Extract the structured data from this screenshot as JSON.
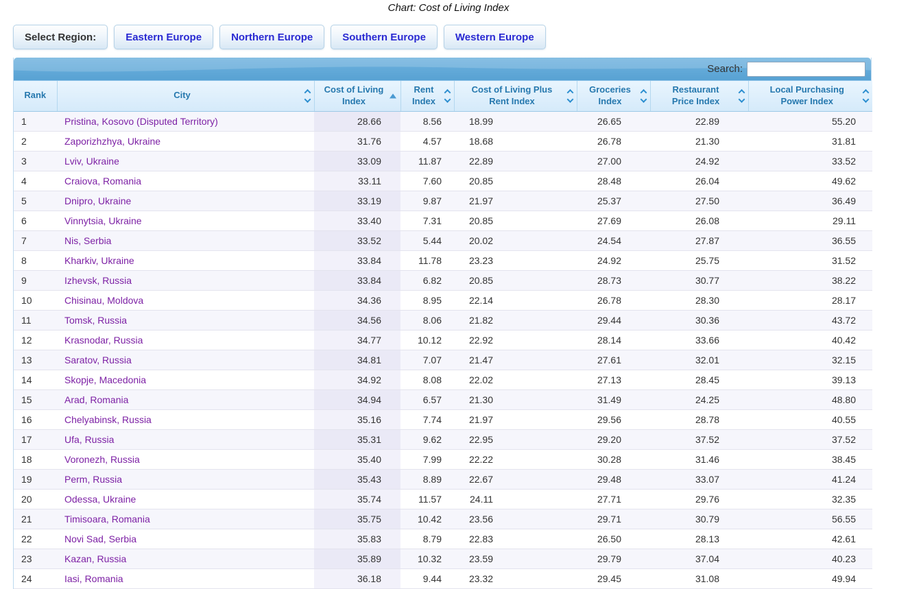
{
  "page": {
    "title": "Chart: Cost of Living Index"
  },
  "region_bar": {
    "label": "Select Region:",
    "regions": [
      "Eastern Europe",
      "Northern Europe",
      "Southern Europe",
      "Western Europe"
    ]
  },
  "search": {
    "label": "Search:",
    "value": "",
    "placeholder": ""
  },
  "table": {
    "sorted_column": "Cost of Living Index",
    "sort_direction": "ascending",
    "columns": [
      {
        "label": "Rank",
        "sort": "none"
      },
      {
        "label": "City",
        "sort": "both"
      },
      {
        "label": "Cost of Living\nIndex",
        "sort": "asc"
      },
      {
        "label": "Rent\nIndex",
        "sort": "both"
      },
      {
        "label": "Cost of Living Plus\nRent Index",
        "sort": "both"
      },
      {
        "label": "Groceries\nIndex",
        "sort": "both"
      },
      {
        "label": "Restaurant\nPrice Index",
        "sort": "both"
      },
      {
        "label": "Local Purchasing\nPower Index",
        "sort": "both"
      }
    ],
    "rows": [
      [
        "1",
        "Pristina, Kosovo (Disputed Territory)",
        "28.66",
        "8.56",
        "18.99",
        "26.65",
        "22.89",
        "55.20"
      ],
      [
        "2",
        "Zaporizhzhya, Ukraine",
        "31.76",
        "4.57",
        "18.68",
        "26.78",
        "21.30",
        "31.81"
      ],
      [
        "3",
        "Lviv, Ukraine",
        "33.09",
        "11.87",
        "22.89",
        "27.00",
        "24.92",
        "33.52"
      ],
      [
        "4",
        "Craiova, Romania",
        "33.11",
        "7.60",
        "20.85",
        "28.48",
        "26.04",
        "49.62"
      ],
      [
        "5",
        "Dnipro, Ukraine",
        "33.19",
        "9.87",
        "21.97",
        "25.37",
        "27.50",
        "36.49"
      ],
      [
        "6",
        "Vinnytsia, Ukraine",
        "33.40",
        "7.31",
        "20.85",
        "27.69",
        "26.08",
        "29.11"
      ],
      [
        "7",
        "Nis, Serbia",
        "33.52",
        "5.44",
        "20.02",
        "24.54",
        "27.87",
        "36.55"
      ],
      [
        "8",
        "Kharkiv, Ukraine",
        "33.84",
        "11.78",
        "23.23",
        "24.92",
        "25.75",
        "31.52"
      ],
      [
        "9",
        "Izhevsk, Russia",
        "33.84",
        "6.82",
        "20.85",
        "28.73",
        "30.77",
        "38.22"
      ],
      [
        "10",
        "Chisinau, Moldova",
        "34.36",
        "8.95",
        "22.14",
        "26.78",
        "28.30",
        "28.17"
      ],
      [
        "11",
        "Tomsk, Russia",
        "34.56",
        "8.06",
        "21.82",
        "29.44",
        "30.36",
        "43.72"
      ],
      [
        "12",
        "Krasnodar, Russia",
        "34.77",
        "10.12",
        "22.92",
        "28.14",
        "33.66",
        "40.42"
      ],
      [
        "13",
        "Saratov, Russia",
        "34.81",
        "7.07",
        "21.47",
        "27.61",
        "32.01",
        "32.15"
      ],
      [
        "14",
        "Skopje, Macedonia",
        "34.92",
        "8.08",
        "22.02",
        "27.13",
        "28.45",
        "39.13"
      ],
      [
        "15",
        "Arad, Romania",
        "34.94",
        "6.57",
        "21.30",
        "31.49",
        "24.25",
        "48.80"
      ],
      [
        "16",
        "Chelyabinsk, Russia",
        "35.16",
        "7.74",
        "21.97",
        "29.56",
        "28.78",
        "40.55"
      ],
      [
        "17",
        "Ufa, Russia",
        "35.31",
        "9.62",
        "22.95",
        "29.20",
        "37.52",
        "37.52"
      ],
      [
        "18",
        "Voronezh, Russia",
        "35.40",
        "7.99",
        "22.22",
        "30.28",
        "31.46",
        "38.45"
      ],
      [
        "19",
        "Perm, Russia",
        "35.43",
        "8.89",
        "22.67",
        "29.48",
        "33.07",
        "41.24"
      ],
      [
        "20",
        "Odessa, Ukraine",
        "35.74",
        "11.57",
        "24.11",
        "27.71",
        "29.76",
        "32.35"
      ],
      [
        "21",
        "Timisoara, Romania",
        "35.75",
        "10.42",
        "23.56",
        "29.71",
        "30.79",
        "56.55"
      ],
      [
        "22",
        "Novi Sad, Serbia",
        "35.83",
        "8.79",
        "22.83",
        "26.50",
        "28.13",
        "42.61"
      ],
      [
        "23",
        "Kazan, Russia",
        "35.89",
        "10.32",
        "23.59",
        "29.79",
        "37.04",
        "40.23"
      ],
      [
        "24",
        "Iasi, Romania",
        "36.18",
        "9.44",
        "23.32",
        "29.45",
        "31.08",
        "49.94"
      ]
    ]
  },
  "colors": {
    "toolbar_blue": "#5ea7d6",
    "header_bg": "#d9ecfb",
    "header_text": "#2678ae",
    "city_link": "#7d21a5",
    "row_stripe": "#f6f6fc",
    "sorted_column_stripe": "#eae9f6",
    "region_button_text": "#2a2ad2"
  },
  "icons": {
    "sort_both": "up-down-chevrons",
    "sort_asc": "up-triangle"
  }
}
